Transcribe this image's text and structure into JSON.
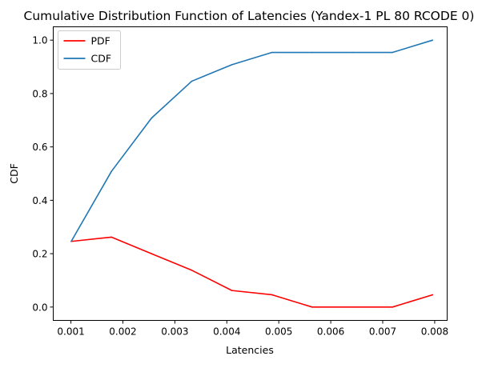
{
  "chart_data": {
    "type": "line",
    "title": "Cumulative Distribution Function of Latencies (Yandex-1 PL 80 RCODE 0)",
    "xlabel": "Latencies",
    "ylabel": "CDF",
    "xlim": [
      0.00066,
      0.00824
    ],
    "ylim": [
      -0.05,
      1.05
    ],
    "x_ticks": [
      0.001,
      0.002,
      0.003,
      0.004,
      0.005,
      0.006,
      0.007,
      0.008
    ],
    "x_tick_labels": [
      "0.001",
      "0.002",
      "0.003",
      "0.004",
      "0.005",
      "0.006",
      "0.007",
      "0.008"
    ],
    "y_ticks": [
      0.0,
      0.2,
      0.4,
      0.6,
      0.8,
      1.0
    ],
    "y_tick_labels": [
      "0.0",
      "0.2",
      "0.4",
      "0.6",
      "0.8",
      "1.0"
    ],
    "grid": false,
    "legend_position": "top-left",
    "x": [
      0.001006,
      0.001779,
      0.002551,
      0.003324,
      0.004097,
      0.00487,
      0.005642,
      0.006415,
      0.007188,
      0.00796
    ],
    "series": [
      {
        "name": "PDF",
        "color": "#ff0000",
        "values": [
          0.246,
          0.262,
          0.2,
          0.138,
          0.062,
          0.046,
          0.0,
          0.0,
          0.0,
          0.046
        ]
      },
      {
        "name": "CDF",
        "color": "#1f77b4",
        "values": [
          0.246,
          0.508,
          0.708,
          0.846,
          0.908,
          0.954,
          0.954,
          0.954,
          0.954,
          1.0
        ]
      }
    ]
  }
}
